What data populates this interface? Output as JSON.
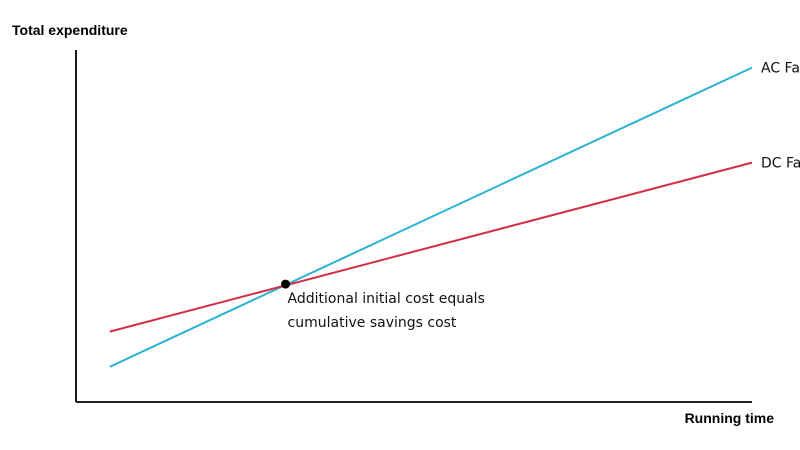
{
  "chart_data": {
    "type": "line",
    "title": "",
    "ylabel": "Total expenditure",
    "xlabel": "Running time",
    "xlim": [
      0,
      100
    ],
    "ylim": [
      0,
      100
    ],
    "grid": false,
    "series": [
      {
        "name": "AC Fan",
        "color": "#2bb3d1",
        "x": [
          5,
          100
        ],
        "y": [
          10,
          95
        ]
      },
      {
        "name": "DC Fan",
        "color": "#d32f45",
        "x": [
          5,
          100
        ],
        "y": [
          20,
          68
        ]
      }
    ],
    "annotation": {
      "point": {
        "x": 31,
        "y": 33.5
      },
      "lines": [
        "Additional initial cost equals",
        "cumulative savings cost"
      ]
    }
  }
}
